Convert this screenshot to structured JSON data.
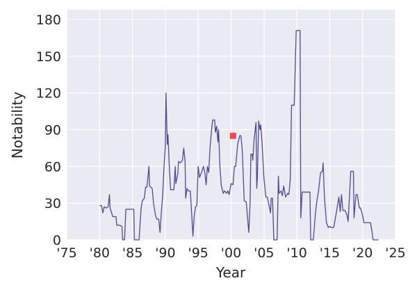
{
  "chart_data": {
    "type": "line",
    "title": "",
    "xlabel": "Year",
    "ylabel": "Notability",
    "xlim": [
      1975,
      2025
    ],
    "ylim": [
      0,
      188
    ],
    "x_ticks": [
      1975,
      1980,
      1985,
      1990,
      1995,
      2000,
      2005,
      2010,
      2015,
      2020,
      2025
    ],
    "x_tick_labels": [
      "'75",
      "'80",
      "'85",
      "'90",
      "'95",
      "'00",
      "'05",
      "'10",
      "'15",
      "'20",
      "'25"
    ],
    "y_ticks": [
      0,
      30,
      60,
      90,
      120,
      150,
      180
    ],
    "y_tick_labels": [
      "0",
      "30",
      "60",
      "90",
      "120",
      "150",
      "180"
    ],
    "grid": true,
    "series": [
      {
        "color": "#4b4a93",
        "points": [
          [
            1980.0,
            28
          ],
          [
            1980.3,
            28
          ],
          [
            1980.5,
            22
          ],
          [
            1980.7,
            27
          ],
          [
            1981.0,
            26
          ],
          [
            1981.3,
            27
          ],
          [
            1981.5,
            37
          ],
          [
            1981.6,
            26
          ],
          [
            1982.0,
            19
          ],
          [
            1982.5,
            19
          ],
          [
            1982.6,
            12
          ],
          [
            1983.0,
            12
          ],
          [
            1983.4,
            11
          ],
          [
            1983.5,
            0
          ],
          [
            1983.8,
            0
          ],
          [
            1984.0,
            25
          ],
          [
            1984.5,
            25
          ],
          [
            1985.2,
            25
          ],
          [
            1985.3,
            0
          ],
          [
            1986.0,
            0
          ],
          [
            1986.3,
            25
          ],
          [
            1986.5,
            32
          ],
          [
            1986.8,
            34
          ],
          [
            1987.0,
            43
          ],
          [
            1987.2,
            43
          ],
          [
            1987.5,
            60
          ],
          [
            1987.6,
            44
          ],
          [
            1988.0,
            42
          ],
          [
            1988.2,
            30
          ],
          [
            1988.5,
            20
          ],
          [
            1988.7,
            17
          ],
          [
            1989.0,
            17
          ],
          [
            1989.2,
            6
          ],
          [
            1989.4,
            23
          ],
          [
            1989.6,
            37
          ],
          [
            1989.8,
            60
          ],
          [
            1990.0,
            77
          ],
          [
            1990.1,
            120
          ],
          [
            1990.3,
            78
          ],
          [
            1990.4,
            86
          ],
          [
            1990.6,
            60
          ],
          [
            1990.8,
            41
          ],
          [
            1991.0,
            41
          ],
          [
            1991.3,
            41
          ],
          [
            1991.5,
            60
          ],
          [
            1991.6,
            46
          ],
          [
            1991.9,
            54
          ],
          [
            1992.0,
            64
          ],
          [
            1992.3,
            63
          ],
          [
            1992.6,
            65
          ],
          [
            1992.8,
            75
          ],
          [
            1993.0,
            64
          ],
          [
            1993.1,
            34
          ],
          [
            1993.3,
            42
          ],
          [
            1993.5,
            40
          ],
          [
            1993.8,
            40
          ],
          [
            1994.0,
            22
          ],
          [
            1994.2,
            3
          ],
          [
            1994.4,
            20
          ],
          [
            1994.6,
            27
          ],
          [
            1994.8,
            28
          ],
          [
            1995.0,
            60
          ],
          [
            1995.2,
            51
          ],
          [
            1995.5,
            55
          ],
          [
            1995.8,
            60
          ],
          [
            1996.0,
            55
          ],
          [
            1996.2,
            45
          ],
          [
            1996.4,
            60
          ],
          [
            1996.6,
            55
          ],
          [
            1996.8,
            75
          ],
          [
            1997.0,
            88
          ],
          [
            1997.2,
            98
          ],
          [
            1997.5,
            98
          ],
          [
            1997.6,
            88
          ],
          [
            1997.8,
            93
          ],
          [
            1998.0,
            80
          ],
          [
            1998.1,
            90
          ],
          [
            1998.3,
            60
          ],
          [
            1998.5,
            45
          ],
          [
            1998.8,
            38
          ],
          [
            1999.0,
            40
          ],
          [
            1999.3,
            38
          ],
          [
            1999.5,
            40
          ],
          [
            1999.7,
            37
          ],
          [
            2000.0,
            46
          ],
          [
            2000.3,
            45
          ],
          [
            2000.5,
            60
          ],
          [
            2000.7,
            60
          ],
          [
            2001.0,
            78
          ],
          [
            2001.3,
            85
          ],
          [
            2001.5,
            85
          ],
          [
            2001.7,
            73
          ],
          [
            2002.0,
            32
          ],
          [
            2002.3,
            31
          ],
          [
            2002.5,
            18
          ],
          [
            2002.7,
            6
          ],
          [
            2002.9,
            31
          ],
          [
            2003.0,
            70
          ],
          [
            2003.2,
            70
          ],
          [
            2003.3,
            65
          ],
          [
            2003.5,
            82
          ],
          [
            2003.8,
            96
          ],
          [
            2003.9,
            42
          ],
          [
            2004.0,
            50
          ],
          [
            2004.2,
            97
          ],
          [
            2004.4,
            90
          ],
          [
            2004.5,
            94
          ],
          [
            2004.7,
            80
          ],
          [
            2005.0,
            50
          ],
          [
            2005.3,
            35
          ],
          [
            2005.5,
            35
          ],
          [
            2005.7,
            30
          ],
          [
            2006.0,
            22
          ],
          [
            2006.1,
            34
          ],
          [
            2006.3,
            34
          ],
          [
            2006.5,
            0
          ],
          [
            2007.0,
            0
          ],
          [
            2007.2,
            52
          ],
          [
            2007.3,
            38
          ],
          [
            2007.6,
            40
          ],
          [
            2007.8,
            36
          ],
          [
            2008.0,
            44
          ],
          [
            2008.3,
            35
          ],
          [
            2008.6,
            38
          ],
          [
            2008.8,
            37
          ],
          [
            2009.0,
            49
          ],
          [
            2009.2,
            110
          ],
          [
            2009.6,
            110
          ],
          [
            2009.9,
            171
          ],
          [
            2010.5,
            171
          ],
          [
            2010.6,
            18
          ],
          [
            2010.8,
            39
          ],
          [
            2011.3,
            39
          ],
          [
            2012.0,
            39
          ],
          [
            2012.1,
            0
          ],
          [
            2012.5,
            0
          ],
          [
            2012.8,
            20
          ],
          [
            2013.0,
            30
          ],
          [
            2013.3,
            40
          ],
          [
            2013.6,
            55
          ],
          [
            2013.9,
            56
          ],
          [
            2014.0,
            63
          ],
          [
            2014.2,
            35
          ],
          [
            2014.5,
            14
          ],
          [
            2014.8,
            10
          ],
          [
            2015.0,
            11
          ],
          [
            2015.3,
            10
          ],
          [
            2015.6,
            10
          ],
          [
            2016.0,
            22
          ],
          [
            2016.4,
            35
          ],
          [
            2016.6,
            23
          ],
          [
            2016.8,
            37
          ],
          [
            2017.0,
            24
          ],
          [
            2017.3,
            24
          ],
          [
            2017.6,
            21
          ],
          [
            2017.8,
            15
          ],
          [
            2018.0,
            35
          ],
          [
            2018.2,
            56
          ],
          [
            2018.6,
            56
          ],
          [
            2018.7,
            18
          ],
          [
            2019.0,
            37
          ],
          [
            2019.2,
            37
          ],
          [
            2019.5,
            26
          ],
          [
            2019.7,
            26
          ],
          [
            2020.0,
            20
          ],
          [
            2020.2,
            14
          ],
          [
            2020.5,
            14
          ],
          [
            2021.0,
            14
          ],
          [
            2021.2,
            14
          ],
          [
            2021.4,
            8
          ],
          [
            2021.6,
            0
          ],
          [
            2022.4,
            0
          ]
        ]
      }
    ],
    "annotations": [
      {
        "type": "marker",
        "shape": "square",
        "x": 2000.3,
        "y": 85,
        "color": "#f04b4f"
      }
    ]
  }
}
